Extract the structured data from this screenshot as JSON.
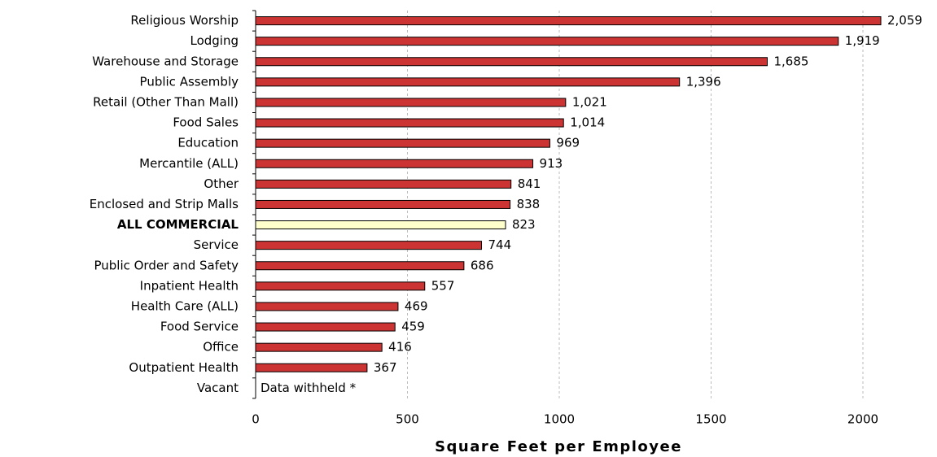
{
  "chart_data": {
    "type": "hbar",
    "xlabel": "Square Feet per Employee",
    "categories": [
      "Religious Worship",
      "Lodging",
      "Warehouse and Storage",
      "Public Assembly",
      "Retail (Other Than Mall)",
      "Food Sales",
      "Education",
      "Mercantile (ALL)",
      "Other",
      "Enclosed and Strip Malls",
      "ALL COMMERCIAL",
      "Service",
      "Public Order and Safety",
      "Inpatient Health",
      "Health Care (ALL)",
      "Food Service",
      "Office",
      "Outpatient Health",
      "Vacant"
    ],
    "values": [
      2059,
      1919,
      1685,
      1396,
      1021,
      1014,
      969,
      913,
      841,
      838,
      823,
      744,
      686,
      557,
      469,
      459,
      416,
      367,
      null
    ],
    "value_labels": [
      "2,059",
      "1,919",
      "1,685",
      "1,396",
      "1,021",
      "1,014",
      "969",
      "913",
      "841",
      "838",
      "823",
      "744",
      "686",
      "557",
      "469",
      "459",
      "416",
      "367",
      "Data withheld *"
    ],
    "color": "#cc3333",
    "colors": [
      "#cc3333",
      "#cc3333",
      "#cc3333",
      "#cc3333",
      "#cc3333",
      "#cc3333",
      "#cc3333",
      "#cc3333",
      "#cc3333",
      "#cc3333",
      "#ffffcc",
      "#cc3333",
      "#cc3333",
      "#cc3333",
      "#cc3333",
      "#cc3333",
      "#cc3333",
      "#cc3333",
      "#cc3333"
    ],
    "xlim": [
      0,
      2100
    ],
    "xticks": [
      0,
      500,
      1000,
      1500,
      2000
    ],
    "grid": true
  }
}
